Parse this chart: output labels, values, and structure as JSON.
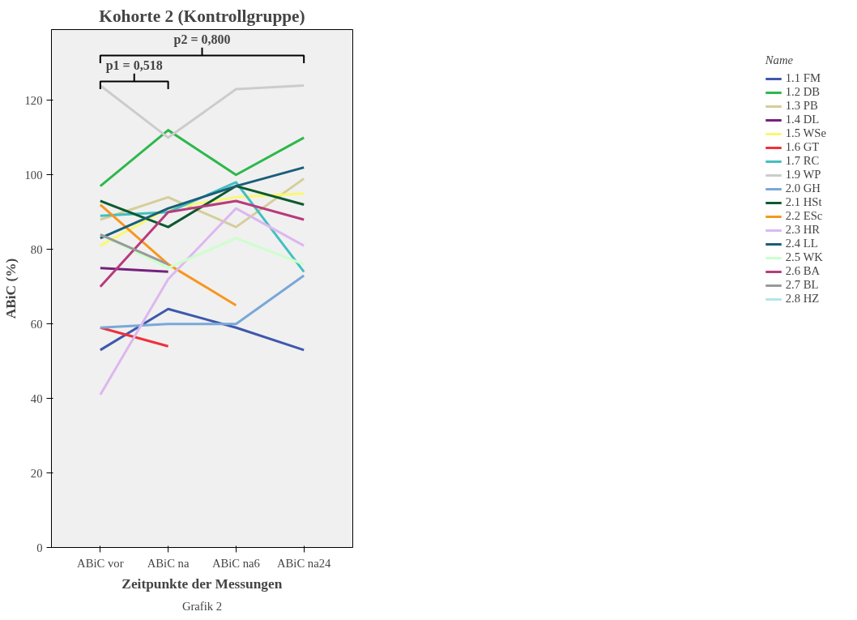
{
  "chart_data": {
    "type": "line",
    "title": "Kohorte 2 (Kontrollgruppe)",
    "xlabel": "Zeitpunkte der Messungen",
    "ylabel": "ABiC (%)",
    "legend_title": "Name",
    "legend": "right",
    "categories": [
      "ABiC vor",
      "ABiC na",
      "ABiC na6",
      "ABiC na24"
    ],
    "ylim": [
      0,
      139
    ],
    "yticks": [
      0,
      20,
      40,
      60,
      80,
      100,
      120
    ],
    "annotations": [
      "p1 = 0,518",
      "p2 = 0,800",
      "Grafik 2"
    ],
    "series": [
      {
        "name": "1.1 FM",
        "color": "#3e58ac",
        "values": [
          53,
          64,
          59,
          53
        ]
      },
      {
        "name": "1.2 DB",
        "color": "#2db84b",
        "values": [
          97,
          112,
          100,
          110
        ]
      },
      {
        "name": "1.3 PB",
        "color": "#d4ce9a",
        "values": [
          88,
          94,
          86,
          99
        ]
      },
      {
        "name": "1.4 DL",
        "color": "#76207e",
        "values": [
          75,
          74,
          null,
          null
        ]
      },
      {
        "name": "1.5 WSe",
        "color": "#fbf870",
        "values": [
          81,
          91,
          94,
          95
        ]
      },
      {
        "name": "1.6 GT",
        "color": "#f0303a",
        "values": [
          59,
          54,
          null,
          null
        ]
      },
      {
        "name": "1.7 RC",
        "color": "#44bfc0",
        "values": [
          89,
          90,
          98,
          74
        ]
      },
      {
        "name": "1.9 WP",
        "color": "#cccccc",
        "values": [
          124,
          110,
          123,
          124
        ]
      },
      {
        "name": "2.0 GH",
        "color": "#79a8d8",
        "values": [
          59,
          60,
          60,
          73
        ]
      },
      {
        "name": "2.1 HSt",
        "color": "#0c5a2e",
        "values": [
          93,
          86,
          97,
          92
        ]
      },
      {
        "name": "2.2 ESc",
        "color": "#f8961f",
        "values": [
          92,
          76,
          65,
          null
        ]
      },
      {
        "name": "2.3 HR",
        "color": "#dcb8ee",
        "values": [
          41,
          72,
          91,
          81
        ]
      },
      {
        "name": "2.4 LL",
        "color": "#1a5e78",
        "values": [
          83,
          91,
          97,
          102
        ]
      },
      {
        "name": "2.5 WK",
        "color": "#ccffcc",
        "values": [
          84,
          75,
          83,
          76
        ]
      },
      {
        "name": "2.6 BA",
        "color": "#b73b7c",
        "values": [
          70,
          90,
          93,
          88
        ]
      },
      {
        "name": "2.7 BL",
        "color": "#999999",
        "values": [
          84,
          76,
          null,
          null
        ]
      },
      {
        "name": "2.8 HZ",
        "color": "#b3e6e6",
        "values": [
          null,
          null,
          null,
          null
        ]
      }
    ]
  }
}
